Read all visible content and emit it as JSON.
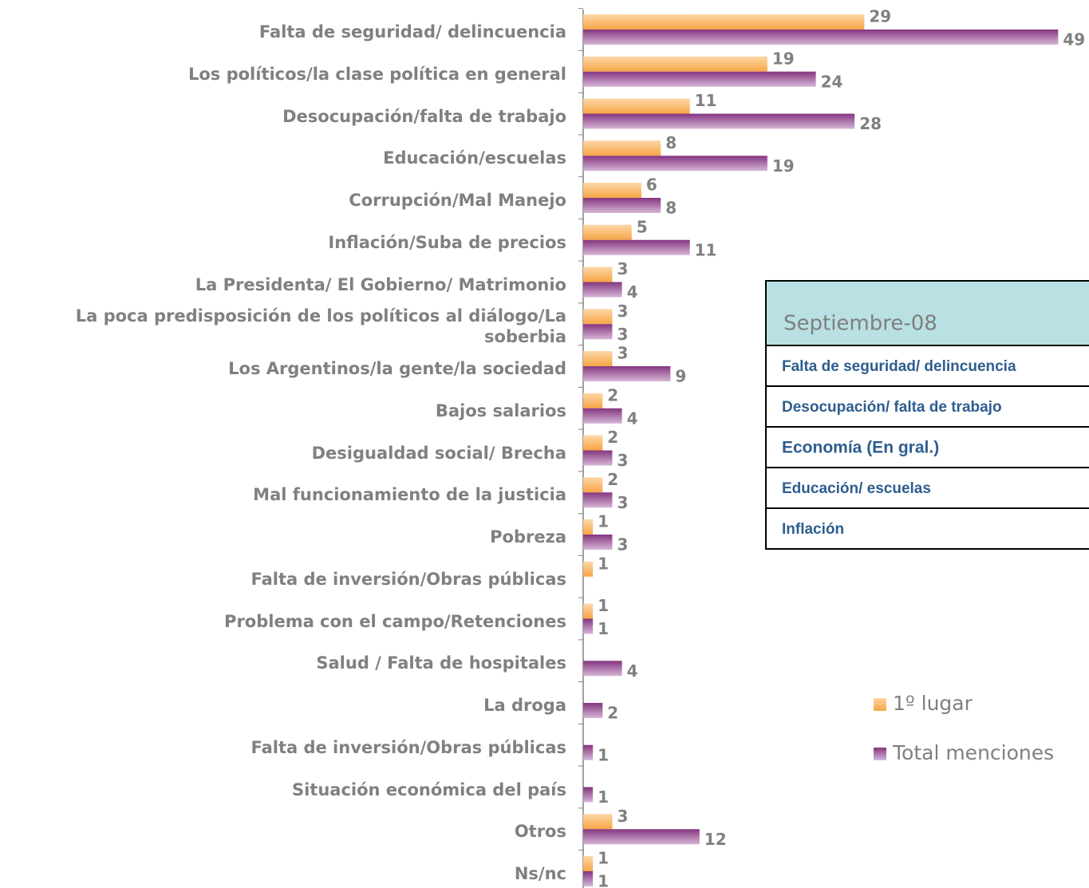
{
  "chart_data": {
    "type": "bar",
    "orientation": "horizontal",
    "categories": [
      "Falta de seguridad/ delincuencia",
      "Los políticos/la clase política en general",
      "Desocupación/falta de trabajo",
      "Educación/escuelas",
      "Corrupción/Mal Manejo",
      "Inflación/Suba de precios",
      "La Presidenta/ El Gobierno/ Matrimonio",
      "La poca predisposición de los políticos al diálogo/La soberbia",
      "Los Argentinos/la gente/la sociedad",
      "Bajos salarios",
      "Desigualdad social/ Brecha",
      "Mal funcionamiento de la justicia",
      "Pobreza",
      "Falta de inversión/Obras públicas",
      "Problema con el campo/Retenciones",
      "Salud / Falta de hospitales",
      "La droga",
      "Falta de inversión/Obras públicas",
      "Situación económica del país",
      "Otros",
      "Ns/nc"
    ],
    "series": [
      {
        "name": "1º lugar",
        "color": "#f7a545",
        "values": [
          29,
          19,
          11,
          8,
          6,
          5,
          3,
          3,
          3,
          2,
          2,
          2,
          1,
          1,
          1,
          null,
          null,
          null,
          null,
          3,
          1
        ]
      },
      {
        "name": "Total menciones",
        "color": "#84357f",
        "values": [
          49,
          24,
          28,
          19,
          8,
          11,
          4,
          3,
          9,
          4,
          3,
          3,
          3,
          null,
          1,
          4,
          2,
          1,
          1,
          12,
          1
        ]
      }
    ],
    "legend": "right"
  },
  "table": {
    "title": "Septiembre-08",
    "rows": [
      "Falta de seguridad/ delincuencia",
      "Desocupación/ falta de trabajo",
      "Economía (En gral.)",
      "Educación/ escuelas",
      "Inflación"
    ],
    "bold_row": 2
  }
}
